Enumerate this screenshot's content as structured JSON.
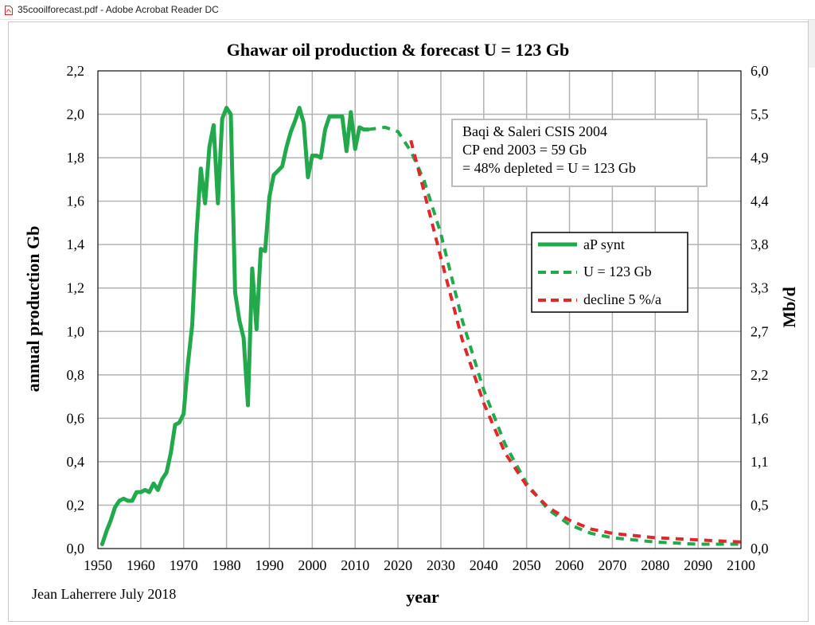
{
  "window": {
    "title": "35cooilforecast.pdf - Adobe Acrobat Reader DC",
    "icon": "pdf-icon"
  },
  "chart_data": {
    "type": "line",
    "title": "Ghawar oil production & forecast U = 123 Gb",
    "xlabel": "year",
    "ylabel": "annual production Gb",
    "y2label": "Mb/d",
    "xlim": [
      1950,
      2100
    ],
    "ylim": [
      0,
      2.2
    ],
    "x_ticks": [
      "1950",
      "1960",
      "1970",
      "1980",
      "1990",
      "2000",
      "2010",
      "2020",
      "2030",
      "2040",
      "2050",
      "2060",
      "2070",
      "2080",
      "2090",
      "2100"
    ],
    "y_ticks": [
      "0,0",
      "0,2",
      "0,4",
      "0,6",
      "0,8",
      "1,0",
      "1,2",
      "1,4",
      "1,6",
      "1,8",
      "2,0",
      "2,2"
    ],
    "y2_ticks": [
      "0,0",
      "0,5",
      "1,1",
      "1,6",
      "2,2",
      "2,7",
      "3,3",
      "3,8",
      "4,4",
      "4,9",
      "5,5",
      "6,0"
    ],
    "grid": true,
    "legend": "right",
    "annotation": [
      "Baqi & Saleri CSIS 2004",
      "CP end 2003 = 59 Gb",
      "= 48% depleted = U = 123 Gb"
    ],
    "credit": "Jean Laherrere July 2018",
    "series": [
      {
        "name": "aP synt",
        "color": "#21a94b",
        "style": "solid",
        "points": [
          [
            1951,
            0.02
          ],
          [
            1952,
            0.08
          ],
          [
            1953,
            0.13
          ],
          [
            1954,
            0.19
          ],
          [
            1955,
            0.22
          ],
          [
            1956,
            0.23
          ],
          [
            1957,
            0.22
          ],
          [
            1958,
            0.22
          ],
          [
            1959,
            0.26
          ],
          [
            1960,
            0.26
          ],
          [
            1961,
            0.27
          ],
          [
            1962,
            0.26
          ],
          [
            1963,
            0.3
          ],
          [
            1964,
            0.27
          ],
          [
            1965,
            0.32
          ],
          [
            1966,
            0.35
          ],
          [
            1967,
            0.44
          ],
          [
            1968,
            0.57
          ],
          [
            1969,
            0.58
          ],
          [
            1970,
            0.62
          ],
          [
            1971,
            0.85
          ],
          [
            1972,
            1.03
          ],
          [
            1973,
            1.45
          ],
          [
            1974,
            1.75
          ],
          [
            1975,
            1.59
          ],
          [
            1976,
            1.85
          ],
          [
            1977,
            1.95
          ],
          [
            1978,
            1.59
          ],
          [
            1979,
            1.98
          ],
          [
            1980,
            2.03
          ],
          [
            1981,
            2.0
          ],
          [
            1982,
            1.18
          ],
          [
            1983,
            1.05
          ],
          [
            1984,
            0.97
          ],
          [
            1985,
            0.66
          ],
          [
            1986,
            1.29
          ],
          [
            1987,
            1.01
          ],
          [
            1988,
            1.38
          ],
          [
            1989,
            1.37
          ],
          [
            1990,
            1.62
          ],
          [
            1991,
            1.72
          ],
          [
            1992,
            1.74
          ],
          [
            1993,
            1.76
          ],
          [
            1994,
            1.85
          ],
          [
            1995,
            1.92
          ],
          [
            1996,
            1.97
          ],
          [
            1997,
            2.03
          ],
          [
            1998,
            1.96
          ],
          [
            1999,
            1.71
          ],
          [
            2000,
            1.81
          ],
          [
            2001,
            1.81
          ],
          [
            2002,
            1.8
          ],
          [
            2003,
            1.93
          ],
          [
            2004,
            1.99
          ],
          [
            2005,
            1.99
          ],
          [
            2006,
            1.99
          ],
          [
            2007,
            1.99
          ],
          [
            2008,
            1.83
          ],
          [
            2009,
            2.01
          ],
          [
            2010,
            1.84
          ],
          [
            2011,
            1.94
          ],
          [
            2012,
            1.93
          ],
          [
            2013,
            1.93
          ]
        ]
      },
      {
        "name": "U = 123 Gb",
        "color": "#21a94b",
        "style": "dashed",
        "points": [
          [
            2013,
            1.93
          ],
          [
            2017,
            1.94
          ],
          [
            2020,
            1.92
          ],
          [
            2023,
            1.83
          ],
          [
            2026,
            1.7
          ],
          [
            2030,
            1.45
          ],
          [
            2035,
            1.05
          ],
          [
            2040,
            0.73
          ],
          [
            2045,
            0.48
          ],
          [
            2050,
            0.3
          ],
          [
            2055,
            0.18
          ],
          [
            2060,
            0.11
          ],
          [
            2065,
            0.07
          ],
          [
            2070,
            0.05
          ],
          [
            2080,
            0.03
          ],
          [
            2090,
            0.02
          ],
          [
            2100,
            0.02
          ]
        ]
      },
      {
        "name": "decline 5 %/a",
        "color": "#e0272c",
        "style": "dashed",
        "points": [
          [
            2023,
            1.88
          ],
          [
            2026,
            1.65
          ],
          [
            2030,
            1.34
          ],
          [
            2035,
            0.96
          ],
          [
            2040,
            0.67
          ],
          [
            2045,
            0.44
          ],
          [
            2050,
            0.29
          ],
          [
            2055,
            0.19
          ],
          [
            2060,
            0.13
          ],
          [
            2065,
            0.09
          ],
          [
            2070,
            0.07
          ],
          [
            2080,
            0.05
          ],
          [
            2090,
            0.04
          ],
          [
            2100,
            0.03
          ]
        ]
      }
    ]
  }
}
